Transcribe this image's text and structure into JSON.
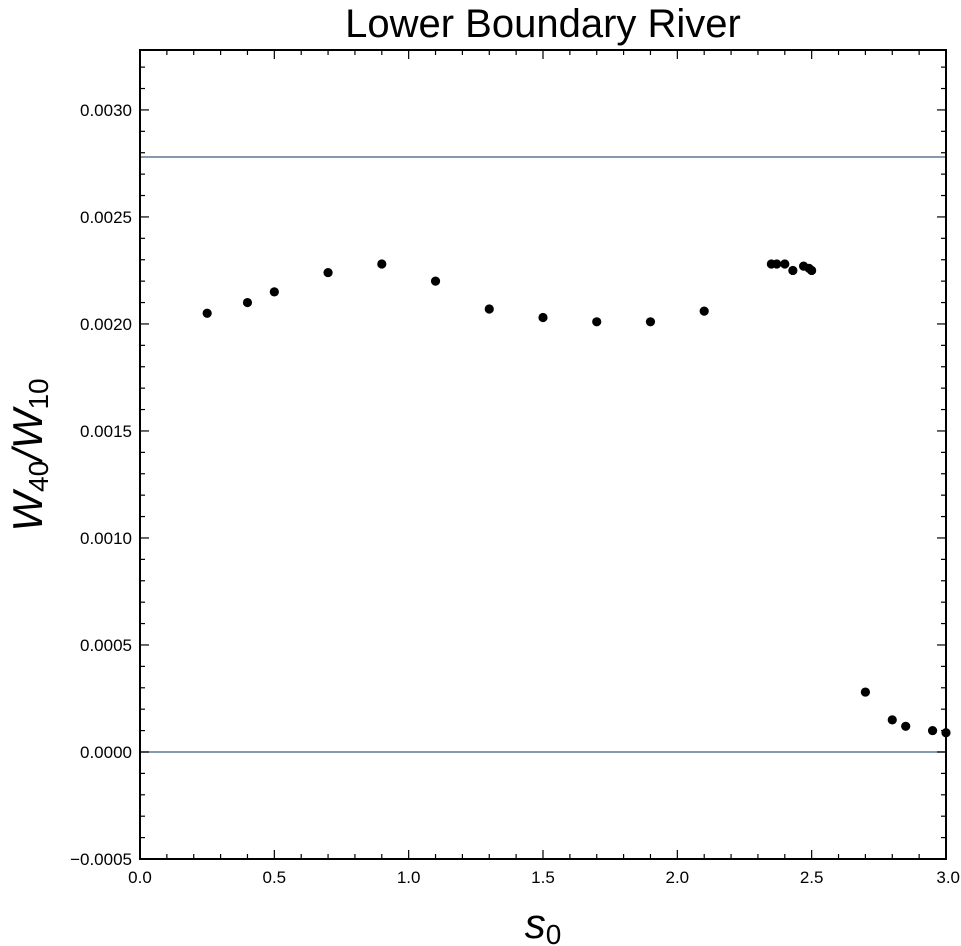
{
  "chart_data": {
    "type": "scatter",
    "title": "Lower Boundary River",
    "xlabel": {
      "base": "s",
      "sub": "0"
    },
    "ylabel": {
      "num_base": "W",
      "num_sub": "40",
      "sep": "/",
      "den_base": "W",
      "den_sub": "10"
    },
    "xlim": [
      0,
      3
    ],
    "ylim": [
      -0.0005,
      0.00328
    ],
    "x_ticks": [
      0,
      0.5,
      1,
      1.5,
      2,
      2.5,
      3
    ],
    "x_tick_labels": [
      "0.0",
      "0.5",
      "1.0",
      "1.5",
      "2.0",
      "2.5",
      "3.0"
    ],
    "y_ticks": [
      -0.0005,
      0,
      0.0005,
      0.001,
      0.0015,
      0.002,
      0.0025,
      0.003
    ],
    "y_tick_labels": [
      "−0.0005",
      "0.0000",
      "0.0005",
      "0.0010",
      "0.0015",
      "0.0020",
      "0.0025",
      "0.0030"
    ],
    "reference_lines": [
      0.00278,
      0.0
    ],
    "reference_line_color": "#5e7694",
    "point_color": "#000000",
    "grid": false,
    "points": [
      [
        0.25,
        0.00205
      ],
      [
        0.4,
        0.0021
      ],
      [
        0.5,
        0.00215
      ],
      [
        0.7,
        0.00224
      ],
      [
        0.9,
        0.00228
      ],
      [
        1.1,
        0.0022
      ],
      [
        1.3,
        0.00207
      ],
      [
        1.5,
        0.00203
      ],
      [
        1.7,
        0.00201
      ],
      [
        1.9,
        0.00201
      ],
      [
        2.1,
        0.00206
      ],
      [
        2.35,
        0.00228
      ],
      [
        2.37,
        0.00228
      ],
      [
        2.4,
        0.00228
      ],
      [
        2.43,
        0.00225
      ],
      [
        2.47,
        0.00227
      ],
      [
        2.49,
        0.00226
      ],
      [
        2.5,
        0.00225
      ],
      [
        2.7,
        0.00028
      ],
      [
        2.8,
        0.00015
      ],
      [
        2.85,
        0.00012
      ],
      [
        2.95,
        0.0001
      ],
      [
        3.0,
        9e-05
      ]
    ]
  }
}
